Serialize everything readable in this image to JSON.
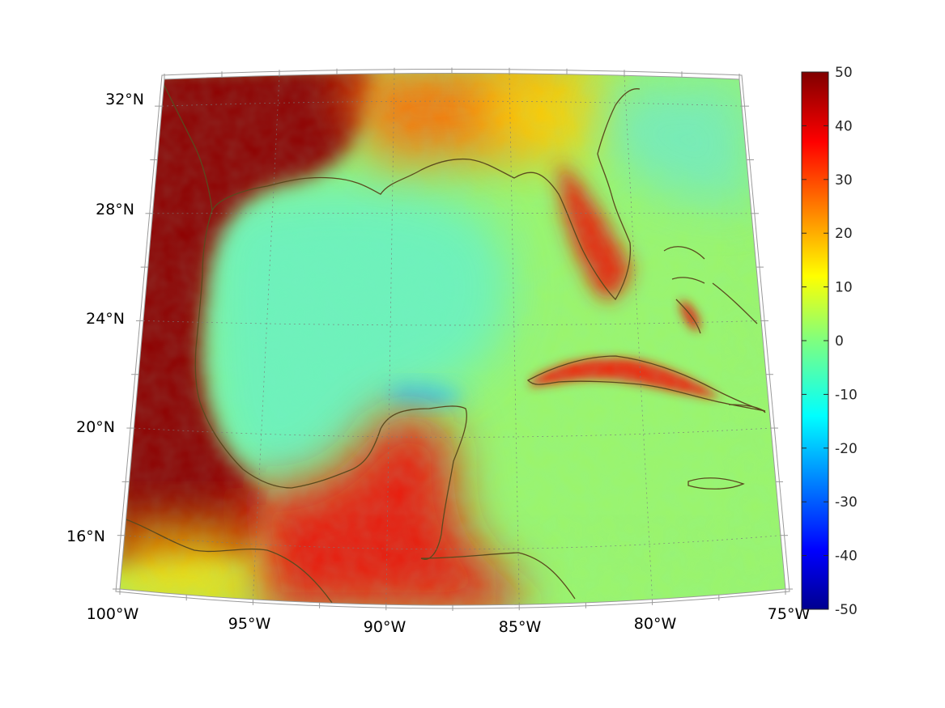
{
  "map": {
    "projection": "conic",
    "lon_range": [
      -100,
      -75
    ],
    "lat_range": [
      14,
      33
    ],
    "graticule": true,
    "frame_ticks": true
  },
  "axes": {
    "lon_labels": [
      {
        "lon": -100,
        "text": "100°W"
      },
      {
        "lon": -95,
        "text": "95°W"
      },
      {
        "lon": -90,
        "text": "90°W"
      },
      {
        "lon": -85,
        "text": "85°W"
      },
      {
        "lon": -80,
        "text": "80°W"
      },
      {
        "lon": -75,
        "text": "75°W"
      }
    ],
    "lat_labels": [
      {
        "lat": 32,
        "text": "32°N"
      },
      {
        "lat": 28,
        "text": "28°N"
      },
      {
        "lat": 24,
        "text": "24°N"
      },
      {
        "lat": 20,
        "text": "20°N"
      },
      {
        "lat": 16,
        "text": "16°N"
      }
    ]
  },
  "colorbar": {
    "colormap": "jet",
    "range": [
      -50,
      50
    ],
    "ticks": [
      "50",
      "40",
      "30",
      "20",
      "10",
      "0",
      "-10",
      "-20",
      "-30",
      "-40",
      "-50"
    ]
  },
  "field": {
    "ocean_typical_range": [
      -15,
      10
    ],
    "high_values_region": "Mexico / Central America / Texas land areas",
    "high_value": 50
  },
  "colors": {
    "coastline": "#5a4a1e",
    "graticule": "#7a7a7a",
    "frame": "#9a9a9a"
  }
}
